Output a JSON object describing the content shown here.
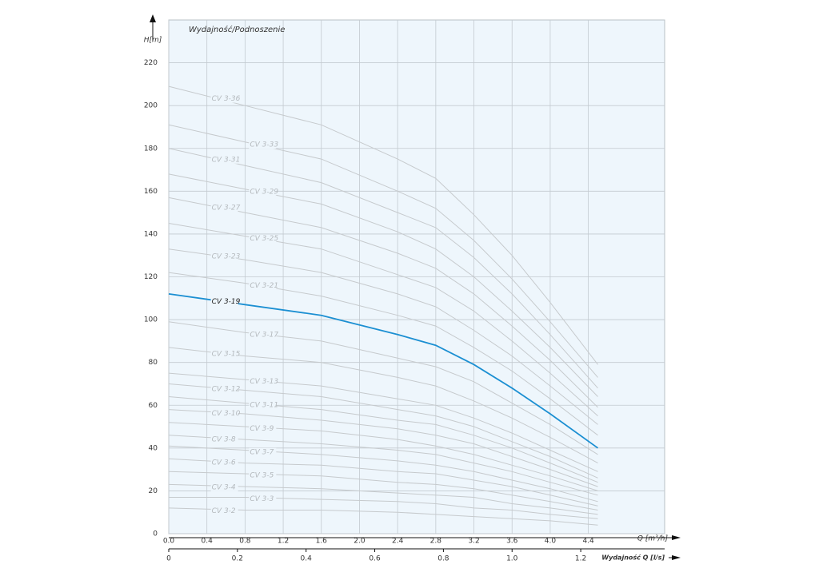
{
  "chart_data": {
    "type": "line",
    "title": "Wydajność/Podnoszenie",
    "y_label": "H[m]",
    "x_label": "Q [m³/h]",
    "x2_label": "Wydajność Q [l/s]",
    "x": [
      0,
      0.8,
      1.6,
      2.4,
      2.8,
      3.2,
      3.6,
      4.0,
      4.5
    ],
    "xlim": [
      0,
      5.2
    ],
    "xticks": [
      {
        "value": 0,
        "label": "0.0"
      },
      0.4,
      0.8,
      1.2,
      1.6,
      {
        "value": 2,
        "label": "2.0"
      },
      2.4,
      2.8,
      3.2,
      3.6,
      {
        "value": 4,
        "label": "4.0"
      },
      4.4
    ],
    "x2lim": [
      0,
      1.4444
    ],
    "x2ticks": [
      0,
      0.2,
      0.4,
      0.6,
      0.8,
      {
        "value": 1,
        "label": "1.0"
      },
      1.2
    ],
    "ylim": [
      0,
      240
    ],
    "yticks": [
      0,
      20,
      40,
      60,
      80,
      100,
      120,
      140,
      160,
      180,
      200,
      220
    ],
    "grid": true,
    "series": [
      {
        "name": "CV 3-2",
        "color": "#c6cacd",
        "values": [
          12,
          11,
          11,
          10,
          9,
          8,
          7,
          6,
          4
        ]
      },
      {
        "name": "CV 3-3",
        "color": "#c6cacd",
        "values": [
          17,
          17,
          16,
          15,
          14,
          12,
          11,
          9,
          7
        ]
      },
      {
        "name": "CV 3-4",
        "color": "#c6cacd",
        "values": [
          23,
          22,
          21,
          19,
          18,
          17,
          14,
          12,
          9
        ]
      },
      {
        "name": "CV 3-5",
        "color": "#c6cacd",
        "values": [
          29,
          28,
          27,
          24,
          23,
          21,
          18,
          15,
          11
        ]
      },
      {
        "name": "CV 3-6",
        "color": "#c6cacd",
        "values": [
          35,
          33,
          32,
          29,
          28,
          25,
          22,
          18,
          13
        ]
      },
      {
        "name": "CV 3-7",
        "color": "#c6cacd",
        "values": [
          41,
          39,
          37,
          34,
          32,
          29,
          25,
          21,
          15
        ]
      },
      {
        "name": "CV 3-8",
        "color": "#c6cacd",
        "values": [
          46,
          44,
          42,
          39,
          37,
          33,
          29,
          24,
          18
        ]
      },
      {
        "name": "CV 3-9",
        "color": "#c6cacd",
        "values": [
          52,
          50,
          48,
          44,
          41,
          37,
          32,
          27,
          20
        ]
      },
      {
        "name": "CV 3-10",
        "color": "#c6cacd",
        "values": [
          58,
          56,
          53,
          49,
          46,
          42,
          36,
          30,
          22
        ]
      },
      {
        "name": "CV 3-11",
        "color": "#c6cacd",
        "values": [
          64,
          61,
          58,
          53,
          51,
          46,
          40,
          33,
          24
        ]
      },
      {
        "name": "CV 3-12",
        "color": "#c6cacd",
        "values": [
          70,
          67,
          64,
          58,
          55,
          50,
          43,
          36,
          26
        ]
      },
      {
        "name": "CV 3-13",
        "color": "#c6cacd",
        "values": [
          75,
          72,
          69,
          63,
          60,
          54,
          47,
          39,
          29
        ]
      },
      {
        "name": "CV 3-15",
        "color": "#c6cacd",
        "values": [
          87,
          83,
          80,
          73,
          69,
          62,
          54,
          45,
          33
        ]
      },
      {
        "name": "CV 3-17",
        "color": "#c6cacd",
        "values": [
          99,
          94,
          90,
          82,
          78,
          71,
          61,
          51,
          37
        ]
      },
      {
        "name": "CV 3-19",
        "color": "#1b8fd2",
        "values": [
          112,
          107,
          102,
          93,
          88,
          79,
          68,
          56,
          40
        ]
      },
      {
        "name": "CV 3-21",
        "color": "#c6cacd",
        "values": [
          122,
          117,
          111,
          102,
          97,
          87,
          76,
          63,
          46
        ]
      },
      {
        "name": "CV 3-23",
        "color": "#c6cacd",
        "values": [
          133,
          128,
          122,
          112,
          106,
          95,
          83,
          69,
          51
        ]
      },
      {
        "name": "CV 3-25",
        "color": "#c6cacd",
        "values": [
          145,
          139,
          133,
          121,
          115,
          104,
          90,
          75,
          55
        ]
      },
      {
        "name": "CV 3-27",
        "color": "#c6cacd",
        "values": [
          157,
          150,
          143,
          131,
          124,
          112,
          97,
          81,
          59
        ]
      },
      {
        "name": "CV 3-29",
        "color": "#c6cacd",
        "values": [
          168,
          161,
          154,
          141,
          133,
          120,
          104,
          87,
          64
        ]
      },
      {
        "name": "CV 3-31",
        "color": "#c6cacd",
        "values": [
          180,
          172,
          164,
          150,
          143,
          129,
          112,
          93,
          68
        ]
      },
      {
        "name": "CV 3-33",
        "color": "#c6cacd",
        "values": [
          191,
          183,
          175,
          160,
          152,
          137,
          119,
          99,
          73
        ]
      },
      {
        "name": "CV 3-36",
        "color": "#c6cacd",
        "values": [
          209,
          200,
          191,
          175,
          166,
          149,
          130,
          108,
          79
        ]
      }
    ]
  }
}
